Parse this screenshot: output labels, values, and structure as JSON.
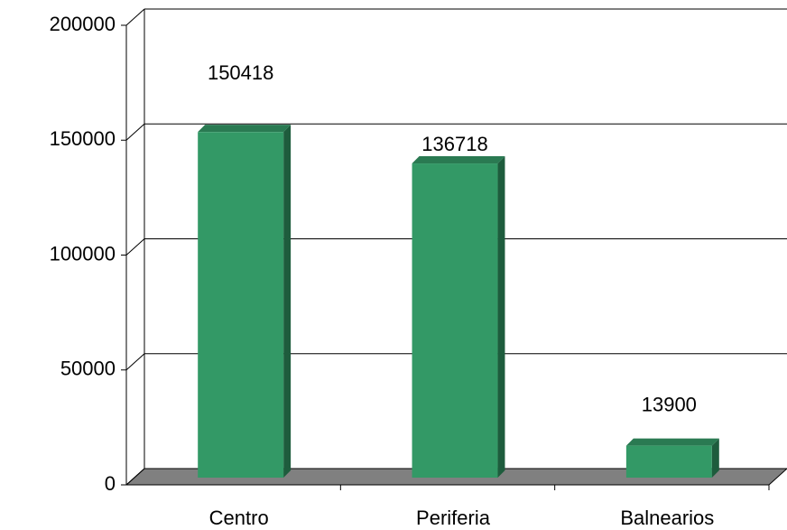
{
  "chart_data": {
    "type": "bar",
    "categories": [
      "Centro",
      "Periferia",
      "Balnearios"
    ],
    "values": [
      150418,
      136718,
      13900
    ],
    "color": "#339966",
    "ylim": [
      0,
      200000
    ],
    "yticks": [
      0,
      50000,
      100000,
      150000,
      200000
    ],
    "grid": true
  }
}
